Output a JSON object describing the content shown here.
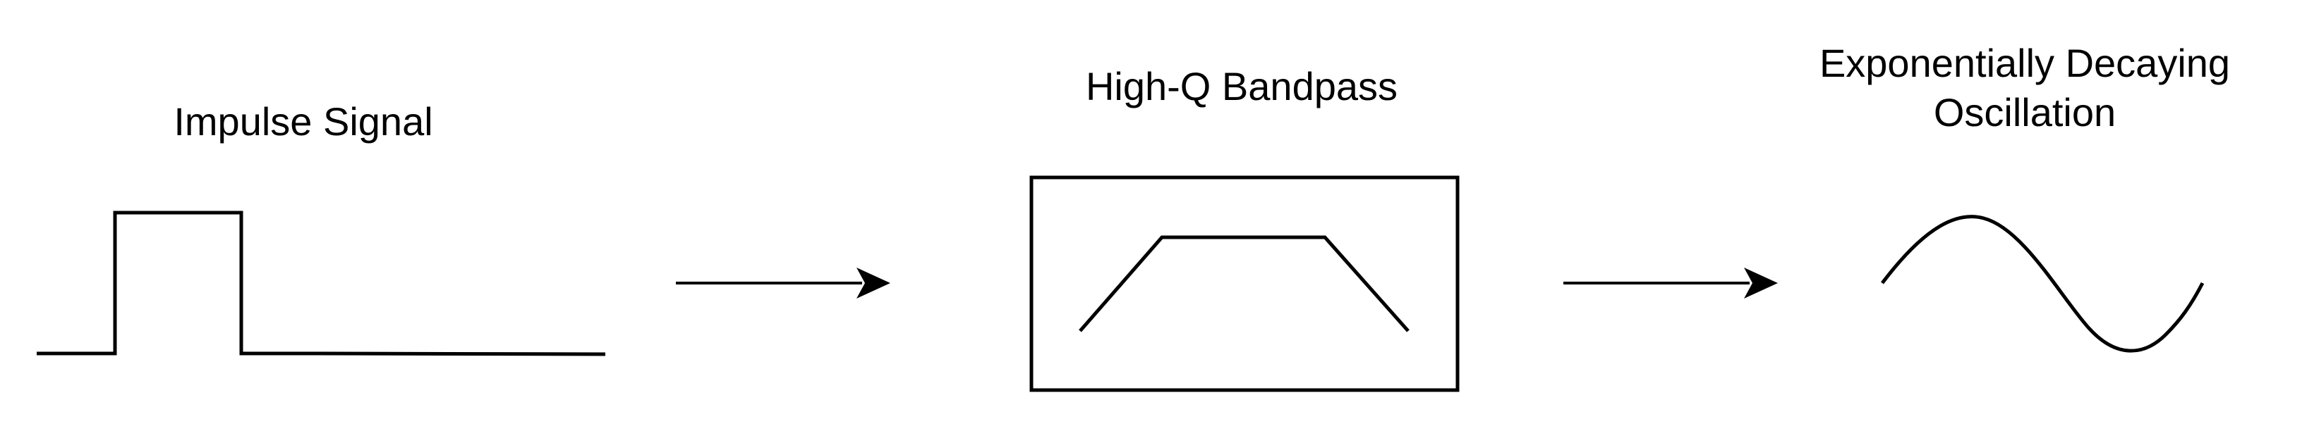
{
  "diagram": {
    "impulse": {
      "label": "Impulse Signal"
    },
    "filter": {
      "label": "High-Q Bandpass"
    },
    "output": {
      "label_line1": "Exponentially Decaying",
      "label_line2": "Oscillation"
    },
    "colors": {
      "stroke": "#000000",
      "background": "#ffffff"
    }
  }
}
